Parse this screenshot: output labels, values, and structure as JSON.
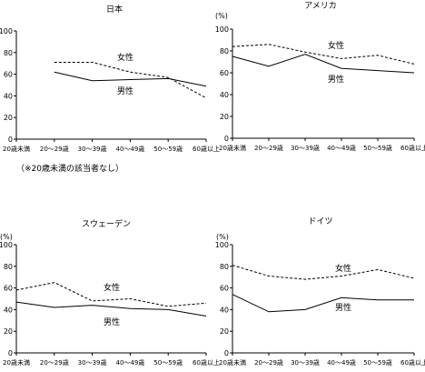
{
  "figure": {
    "note": "（※20歳未満の該当者なし）"
  },
  "chart_data": [
    {
      "type": "line",
      "title": "日本",
      "unit_label": "",
      "categories": [
        "20歳未満",
        "20～29歳",
        "30～39歳",
        "40～49歳",
        "50～59歳",
        "60歳以上"
      ],
      "ylim": [
        0,
        100
      ],
      "yticks": [
        0,
        20,
        40,
        60,
        80,
        100
      ],
      "series": [
        {
          "name": "女性",
          "style": "dashed",
          "values": [
            null,
            71,
            71,
            62,
            57,
            38
          ]
        },
        {
          "name": "男性",
          "style": "solid",
          "values": [
            null,
            62,
            54,
            55,
            56,
            49
          ]
        }
      ],
      "grid": false
    },
    {
      "type": "line",
      "title": "アメリカ",
      "unit_label": "(%)",
      "categories": [
        "20歳未満",
        "20～29歳",
        "30～39歳",
        "40～49歳",
        "50～59歳",
        "60歳以上"
      ],
      "ylim": [
        0,
        100
      ],
      "yticks": [
        0,
        20,
        40,
        60,
        80,
        100
      ],
      "series": [
        {
          "name": "女性",
          "style": "dashed",
          "values": [
            84,
            86,
            79,
            73,
            76,
            68
          ]
        },
        {
          "name": "男性",
          "style": "solid",
          "values": [
            75,
            66,
            77,
            64,
            62,
            60
          ]
        }
      ],
      "grid": false
    },
    {
      "type": "line",
      "title": "スウェーデン",
      "unit_label": "(%)",
      "categories": [
        "20歳未満",
        "20～29歳",
        "30～39歳",
        "40～49歳",
        "50～59歳",
        "60歳以上"
      ],
      "ylim": [
        0,
        100
      ],
      "yticks": [
        0,
        20,
        40,
        60,
        80,
        100
      ],
      "series": [
        {
          "name": "女性",
          "style": "dashed",
          "values": [
            58,
            65,
            48,
            50,
            43,
            46
          ]
        },
        {
          "name": "男性",
          "style": "solid",
          "values": [
            47,
            42,
            44,
            41,
            40,
            34
          ]
        }
      ],
      "grid": false
    },
    {
      "type": "line",
      "title": "ドイツ",
      "unit_label": "(%)",
      "categories": [
        "20歳未満",
        "20～29歳",
        "30～39歳",
        "40～49歳",
        "50～59歳",
        "60歳以上"
      ],
      "ylim": [
        0,
        100
      ],
      "yticks": [
        0,
        20,
        40,
        60,
        80,
        100
      ],
      "series": [
        {
          "name": "女性",
          "style": "dashed",
          "values": [
            81,
            71,
            68,
            71,
            77,
            69
          ]
        },
        {
          "name": "男性",
          "style": "solid",
          "values": [
            54,
            38,
            40,
            51,
            49,
            49
          ]
        }
      ],
      "grid": false
    }
  ]
}
